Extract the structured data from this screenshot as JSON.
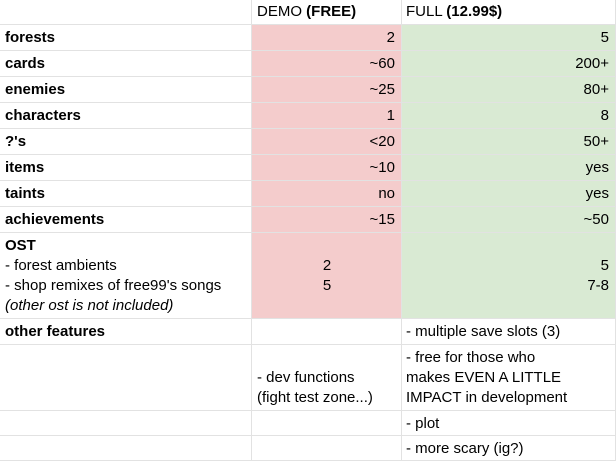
{
  "header": {
    "demo_plain": "DEMO ",
    "demo_bold": "(FREE)",
    "full_plain": "FULL ",
    "full_bold": "(12.99$)"
  },
  "rows": [
    {
      "label": "forests",
      "demo": "2",
      "full": "5"
    },
    {
      "label": "cards",
      "demo": "~60",
      "full": "200+"
    },
    {
      "label": "enemies",
      "demo": "~25",
      "full": "80+"
    },
    {
      "label": "characters",
      "demo": "1",
      "full": "8"
    },
    {
      "label": "?'s",
      "demo": "<20",
      "full": "50+"
    },
    {
      "label": "items",
      "demo": "~10",
      "full": "yes"
    },
    {
      "label": "taints",
      "demo": "no",
      "full": "yes"
    },
    {
      "label": "achievements",
      "demo": "~15",
      "full": "~50"
    }
  ],
  "ost": {
    "label": "OST",
    "lines": [
      "- forest ambients",
      "- shop remixes of free99's songs"
    ],
    "note": "(other ost is not included)",
    "demo": [
      "2",
      "5"
    ],
    "full": [
      "5",
      "7-8"
    ]
  },
  "other": {
    "label": "other features",
    "full_1": "- multiple save slots (3)",
    "full_2": [
      "- free for those who",
      "makes EVEN A LITTLE",
      "IMPACT in development"
    ],
    "demo_2": [
      "- dev functions",
      "(fight test zone...)"
    ],
    "full_3": "- plot",
    "full_4": "- more scary (ig?)"
  },
  "colors": {
    "demo_bg": "#f4cccc",
    "full_bg": "#d9ead3",
    "grid": "#e2e2e2"
  }
}
